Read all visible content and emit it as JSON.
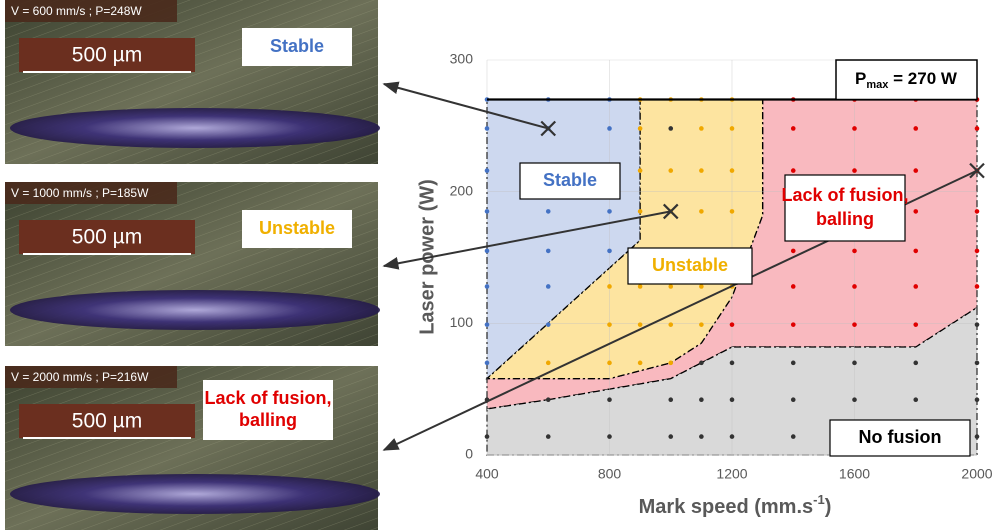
{
  "chart_data": {
    "type": "scatter",
    "xlabel": {
      "text": "Mark speed (mm.s",
      "superscript": "-1",
      "suffix": ")"
    },
    "ylabel": "Laser power (W)",
    "xlim": [
      400,
      2000
    ],
    "ylim": [
      0,
      300
    ],
    "xticks": [
      400,
      800,
      1200,
      1600,
      2000
    ],
    "yticks": [
      0,
      100,
      200,
      300
    ],
    "grid": true,
    "regions": [
      {
        "label": [
          "Lack of fusion,",
          "balling"
        ],
        "label_color": "#e00000",
        "color": "#f9b9bf",
        "x": [
          1300,
          2000,
          2000,
          1800,
          1200,
          1100,
          1000,
          800,
          600,
          400,
          400,
          800,
          1000,
          1100,
          1200,
          1300
        ],
        "y": [
          270,
          270,
          112,
          82,
          82,
          70,
          58,
          50,
          42,
          35,
          58,
          58,
          70,
          85,
          120,
          182
        ]
      },
      {
        "label": [
          "No fusion"
        ],
        "label_color": "#000000",
        "color": "#d9d9d9",
        "x": [
          400,
          2000,
          2000,
          1800,
          1200,
          1100,
          1000,
          800,
          600,
          400
        ],
        "y": [
          0,
          0,
          112,
          82,
          82,
          70,
          58,
          50,
          42,
          35
        ]
      },
      {
        "label": [
          "Stable"
        ],
        "label_color": "#4472c4",
        "color": "#cdd8ef",
        "x": [
          400,
          900,
          900,
          400
        ],
        "y": [
          270,
          270,
          163,
          58
        ]
      },
      {
        "label": [
          "Unstable"
        ],
        "label_color": "#f0b000",
        "color": "#fde4a0",
        "x": [
          900,
          1300,
          1300,
          1200,
          1100,
          1000,
          800,
          400,
          900
        ],
        "y": [
          270,
          270,
          182,
          120,
          85,
          70,
          58,
          58,
          163
        ]
      }
    ],
    "series": [
      {
        "color": "#4472c4",
        "x": [
          400,
          400,
          400,
          400,
          400,
          400,
          400,
          400,
          600,
          600,
          600,
          600,
          600,
          600,
          600,
          800,
          800,
          800,
          800,
          800
        ],
        "y": [
          270,
          248,
          216,
          185,
          155,
          128,
          99,
          70,
          270,
          248,
          216,
          185,
          155,
          128,
          99,
          270,
          248,
          216,
          185,
          155
        ]
      },
      {
        "color": "#f0a800",
        "x": [
          600,
          800,
          800,
          800,
          900,
          900,
          900,
          900,
          900,
          900,
          900,
          900,
          1000,
          1000,
          1000,
          1000,
          1000,
          1000,
          1000,
          1100,
          1100,
          1100,
          1100,
          1100,
          1100,
          1100,
          1200,
          1200,
          1200,
          1200,
          1200,
          1200
        ],
        "y": [
          70,
          128,
          99,
          70,
          270,
          248,
          216,
          185,
          155,
          128,
          99,
          70,
          270,
          216,
          185,
          155,
          128,
          99,
          70,
          270,
          248,
          216,
          185,
          155,
          128,
          99,
          270,
          248,
          216,
          185,
          155,
          128
        ]
      },
      {
        "color": "#e00000",
        "x": [
          1200,
          1400,
          1400,
          1400,
          1400,
          1400,
          1400,
          1400,
          1600,
          1600,
          1600,
          1600,
          1600,
          1600,
          1600,
          1800,
          1800,
          1800,
          1800,
          1800,
          1800,
          1800,
          2000,
          2000,
          2000,
          2000,
          2000,
          2000
        ],
        "y": [
          99,
          270,
          248,
          216,
          185,
          155,
          128,
          99,
          270,
          248,
          216,
          185,
          155,
          128,
          99,
          270,
          248,
          216,
          185,
          155,
          128,
          99,
          270,
          248,
          216,
          185,
          155,
          128
        ]
      },
      {
        "color": "#333333",
        "x": [
          1000,
          1100,
          1200,
          1400,
          1600,
          1800,
          2000,
          2000,
          400,
          600,
          800,
          1000,
          1100,
          1200,
          1400,
          1600,
          1800,
          2000,
          400,
          600,
          800,
          1000,
          1100,
          1200,
          1400,
          1600,
          1800,
          2000
        ],
        "y": [
          248,
          70,
          70,
          70,
          70,
          70,
          70,
          99,
          42,
          42,
          42,
          42,
          42,
          42,
          42,
          42,
          42,
          42,
          14,
          14,
          14,
          14,
          14,
          14,
          14,
          14,
          14,
          14
        ]
      }
    ],
    "markers": {
      "x": [
        600,
        1000,
        2000
      ],
      "y": [
        248,
        185,
        216
      ]
    },
    "pmax": {
      "value": 270,
      "symbol": "P",
      "subscript": "max",
      "text": " = 270 W"
    }
  },
  "micrographs": [
    {
      "caption": "V = 600 mm/s ; P=248W",
      "scale": "500 µm",
      "label": [
        "Stable"
      ],
      "label_color": "#4472c4"
    },
    {
      "caption": "V = 1000 mm/s ; P=185W",
      "scale": "500 µm",
      "label": [
        "Unstable"
      ],
      "label_color": "#f0b000"
    },
    {
      "caption": "V = 2000 mm/s ; P=216W",
      "scale": "500 µm",
      "label": [
        "Lack of fusion,",
        "balling"
      ],
      "label_color": "#e00000"
    }
  ]
}
